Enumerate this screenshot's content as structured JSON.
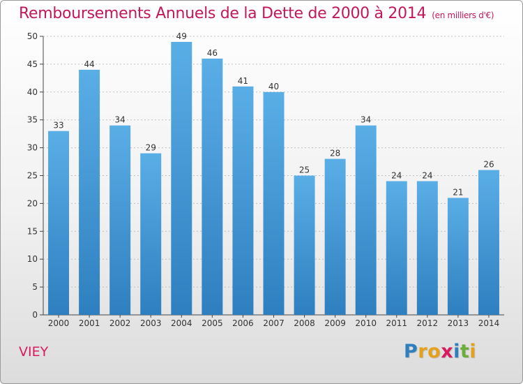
{
  "title": "Remboursements Annuels de la Dette de 2000 à 2014",
  "unit": "(en milliers d'€)",
  "commune": "VIEY",
  "logo": {
    "letters": [
      {
        "ch": "P",
        "color": "#2e7fbf"
      },
      {
        "ch": "r",
        "color": "#e6a11c"
      },
      {
        "ch": "o",
        "color": "#e6a11c"
      },
      {
        "ch": "x",
        "color": "#d81b60"
      },
      {
        "ch": "i",
        "color": "#2e7fbf"
      },
      {
        "ch": "t",
        "color": "#6cae3a"
      },
      {
        "ch": "i",
        "color": "#e6a11c"
      }
    ]
  },
  "colors": {
    "bar_top": "#5aaee6",
    "bar_bottom": "#2e7fbf",
    "title": "#c2185b",
    "axis": "#444444",
    "grid": "#bfbfbf"
  },
  "chart_data": {
    "type": "bar",
    "categories": [
      "2000",
      "2001",
      "2002",
      "2003",
      "2004",
      "2005",
      "2006",
      "2007",
      "2008",
      "2009",
      "2010",
      "2011",
      "2012",
      "2013",
      "2014"
    ],
    "values": [
      33,
      44,
      34,
      29,
      49,
      46,
      41,
      40,
      25,
      28,
      34,
      24,
      24,
      21,
      26
    ],
    "yticks": [
      0,
      5,
      10,
      15,
      20,
      25,
      30,
      35,
      40,
      45,
      50
    ],
    "ylim": [
      0,
      50
    ],
    "grid": true,
    "data_labels": true
  }
}
